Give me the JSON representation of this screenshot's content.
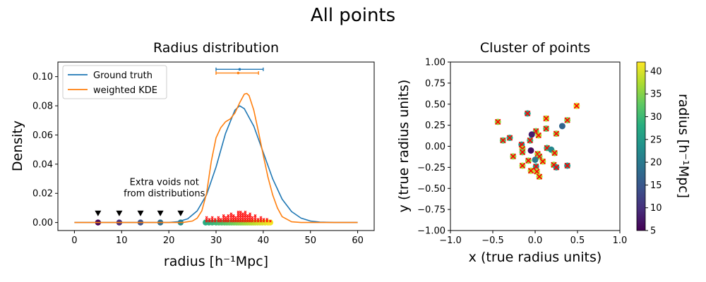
{
  "figure": {
    "title": "All points"
  },
  "chart_data": [
    {
      "type": "line",
      "title": "Radius distribution",
      "xlabel": "radius [h⁻¹Mpc]",
      "ylabel": "Density",
      "xlim": [
        -3.5,
        63.5
      ],
      "ylim": [
        -0.0055,
        0.11
      ],
      "xticks": [
        0,
        10,
        20,
        30,
        40,
        50,
        60
      ],
      "yticks": [
        0.0,
        0.02,
        0.04,
        0.06,
        0.08,
        0.1
      ],
      "ytick_labels": [
        "0.00",
        "0.02",
        "0.04",
        "0.06",
        "0.08",
        "0.10"
      ],
      "legend": {
        "placement": "top-left",
        "entries": [
          "Ground truth",
          "weighted KDE"
        ]
      },
      "colors": {
        "ground_truth": "#1f77b4",
        "kde": "#ff7f0e",
        "extra_marker": "#000000",
        "kde_sample": "#ff0000"
      },
      "series": [
        {
          "name": "Ground truth",
          "x": [
            0,
            20,
            22,
            24,
            26,
            28,
            30,
            32,
            34,
            35,
            36,
            38,
            40,
            42,
            44,
            46,
            48,
            50,
            52,
            55,
            60
          ],
          "values": [
            0.0,
            0.0,
            0.0006,
            0.0025,
            0.008,
            0.019,
            0.038,
            0.061,
            0.077,
            0.08,
            0.078,
            0.066,
            0.048,
            0.03,
            0.016,
            0.0075,
            0.003,
            0.001,
            0.0003,
            0.0,
            0.0
          ]
        },
        {
          "name": "weighted KDE",
          "x": [
            0,
            23,
            25,
            26,
            27,
            28,
            29,
            30,
            31,
            32,
            33,
            34,
            35,
            36,
            36.5,
            37,
            38,
            39,
            40,
            41,
            42,
            43,
            44,
            46,
            48,
            60
          ],
          "values": [
            0.0,
            0.0,
            0.001,
            0.003,
            0.008,
            0.02,
            0.042,
            0.058,
            0.065,
            0.069,
            0.071,
            0.075,
            0.082,
            0.088,
            0.0885,
            0.087,
            0.077,
            0.062,
            0.046,
            0.031,
            0.019,
            0.01,
            0.004,
            0.0005,
            0.0,
            0.0
          ]
        }
      ],
      "error_bars": [
        {
          "series": "Ground truth",
          "center": 35.0,
          "low": 30.0,
          "high": 40.0,
          "y": 0.105
        },
        {
          "series": "weighted KDE",
          "center": 34.7,
          "low": 30.0,
          "high": 39.0,
          "y": 0.1025
        }
      ],
      "annotation": {
        "lines": [
          "Extra voids not",
          "from distributions"
        ],
        "x": 18.0,
        "y": 0.0175
      },
      "extra_voids": {
        "x": [
          5.0,
          9.5,
          14.0,
          18.2,
          22.5
        ],
        "marker_y": 0.0062
      },
      "void_radii": [
        27.8,
        28.5,
        29.2,
        30.0,
        30.6,
        31.2,
        31.8,
        32.3,
        32.8,
        33.3,
        33.8,
        34.3,
        34.7,
        35.1,
        35.5,
        35.9,
        36.3,
        36.7,
        37.1,
        37.5,
        37.9,
        38.3,
        38.8,
        39.3,
        39.8,
        40.4,
        41.0,
        41.5
      ],
      "kde_samples": [
        {
          "x": 28.0,
          "n": 3
        },
        {
          "x": 28.6,
          "n": 2
        },
        {
          "x": 29.2,
          "n": 3
        },
        {
          "x": 29.8,
          "n": 2
        },
        {
          "x": 30.5,
          "n": 3
        },
        {
          "x": 31.0,
          "n": 2
        },
        {
          "x": 31.6,
          "n": 4
        },
        {
          "x": 32.1,
          "n": 3
        },
        {
          "x": 32.6,
          "n": 4
        },
        {
          "x": 33.2,
          "n": 5
        },
        {
          "x": 33.7,
          "n": 4
        },
        {
          "x": 34.2,
          "n": 3
        },
        {
          "x": 34.7,
          "n": 6
        },
        {
          "x": 35.2,
          "n": 6
        },
        {
          "x": 35.7,
          "n": 5
        },
        {
          "x": 36.2,
          "n": 6
        },
        {
          "x": 36.7,
          "n": 4
        },
        {
          "x": 37.2,
          "n": 5
        },
        {
          "x": 37.7,
          "n": 3
        },
        {
          "x": 38.3,
          "n": 4
        },
        {
          "x": 38.9,
          "n": 2
        },
        {
          "x": 39.5,
          "n": 3
        },
        {
          "x": 40.1,
          "n": 2
        },
        {
          "x": 40.8,
          "n": 2
        },
        {
          "x": 41.5,
          "n": 1
        }
      ]
    },
    {
      "type": "scatter",
      "title": "Cluster of points",
      "xlabel": "x (true radius units)",
      "ylabel": "y (true radius units)",
      "xlim": [
        -1.0,
        1.0
      ],
      "ylim": [
        -1.0,
        1.0
      ],
      "xticks": [
        -1.0,
        -0.5,
        0.0,
        0.5,
        1.0
      ],
      "xtick_labels": [
        "−1.0",
        "−0.5",
        "0.0",
        "0.5",
        "1.0"
      ],
      "yticks": [
        -1.0,
        -0.75,
        -0.5,
        -0.25,
        0.0,
        0.25,
        0.5,
        0.75,
        1.0
      ],
      "ytick_labels": [
        "−1.00",
        "−0.75",
        "−0.50",
        "−0.25",
        "0.00",
        "0.25",
        "0.50",
        "0.75",
        "1.00"
      ],
      "colorbar": {
        "label": "radius [h⁻¹Mpc]",
        "range": [
          5,
          42
        ],
        "ticks": [
          5,
          10,
          15,
          20,
          25,
          30,
          35,
          40
        ],
        "colormap": "viridis"
      },
      "cross_color": "#ff0000",
      "points": [
        {
          "x": -0.44,
          "y": 0.29,
          "r": 36,
          "cross": true
        },
        {
          "x": -0.09,
          "y": 0.39,
          "r": 26,
          "cross": true
        },
        {
          "x": 0.13,
          "y": 0.33,
          "r": 38,
          "cross": true
        },
        {
          "x": 0.49,
          "y": 0.48,
          "r": 40,
          "cross": true
        },
        {
          "x": 0.38,
          "y": 0.31,
          "r": 35,
          "cross": true
        },
        {
          "x": 0.32,
          "y": 0.24,
          "r": 17,
          "cross": false
        },
        {
          "x": 0.13,
          "y": 0.21,
          "r": 33,
          "cross": true
        },
        {
          "x": 0.01,
          "y": 0.18,
          "r": 34,
          "cross": true
        },
        {
          "x": 0.25,
          "y": 0.15,
          "r": 36,
          "cross": true
        },
        {
          "x": -0.04,
          "y": 0.14,
          "r": 8,
          "cross": false
        },
        {
          "x": 0.04,
          "y": 0.13,
          "r": 38,
          "cross": true
        },
        {
          "x": -0.3,
          "y": 0.1,
          "r": 28,
          "cross": true
        },
        {
          "x": -0.38,
          "y": 0.07,
          "r": 32,
          "cross": true
        },
        {
          "x": -0.06,
          "y": 0.07,
          "r": 30,
          "cross": true
        },
        {
          "x": -0.16,
          "y": 0.02,
          "r": 25,
          "cross": true
        },
        {
          "x": -0.15,
          "y": -0.03,
          "r": 37,
          "cross": true
        },
        {
          "x": 0.14,
          "y": -0.02,
          "r": 30,
          "cross": true
        },
        {
          "x": 0.19,
          "y": -0.04,
          "r": 22,
          "cross": false
        },
        {
          "x": -0.05,
          "y": -0.05,
          "r": 6,
          "cross": false
        },
        {
          "x": -0.15,
          "y": -0.07,
          "r": 34,
          "cross": true
        },
        {
          "x": 0.03,
          "y": -0.09,
          "r": 37,
          "cross": true
        },
        {
          "x": 0.23,
          "y": -0.08,
          "r": 36,
          "cross": true
        },
        {
          "x": -0.26,
          "y": -0.12,
          "r": 36,
          "cross": true
        },
        {
          "x": 0.05,
          "y": -0.12,
          "r": 35,
          "cross": true
        },
        {
          "x": 0.0,
          "y": -0.16,
          "r": 20,
          "cross": false
        },
        {
          "x": 0.09,
          "y": -0.18,
          "r": 38,
          "cross": true
        },
        {
          "x": -0.08,
          "y": -0.17,
          "r": 36,
          "cross": true
        },
        {
          "x": -0.15,
          "y": -0.23,
          "r": 37,
          "cross": true
        },
        {
          "x": 0.22,
          "y": -0.22,
          "r": 36,
          "cross": true
        },
        {
          "x": 0.25,
          "y": -0.25,
          "r": 24,
          "cross": true
        },
        {
          "x": 0.38,
          "y": -0.23,
          "r": 25,
          "cross": true
        },
        {
          "x": 0.01,
          "y": -0.24,
          "r": 26,
          "cross": true
        },
        {
          "x": -0.05,
          "y": -0.29,
          "r": 38,
          "cross": true
        },
        {
          "x": 0.02,
          "y": -0.3,
          "r": 38,
          "cross": true
        },
        {
          "x": 0.05,
          "y": -0.36,
          "r": 38,
          "cross": true
        }
      ]
    }
  ]
}
